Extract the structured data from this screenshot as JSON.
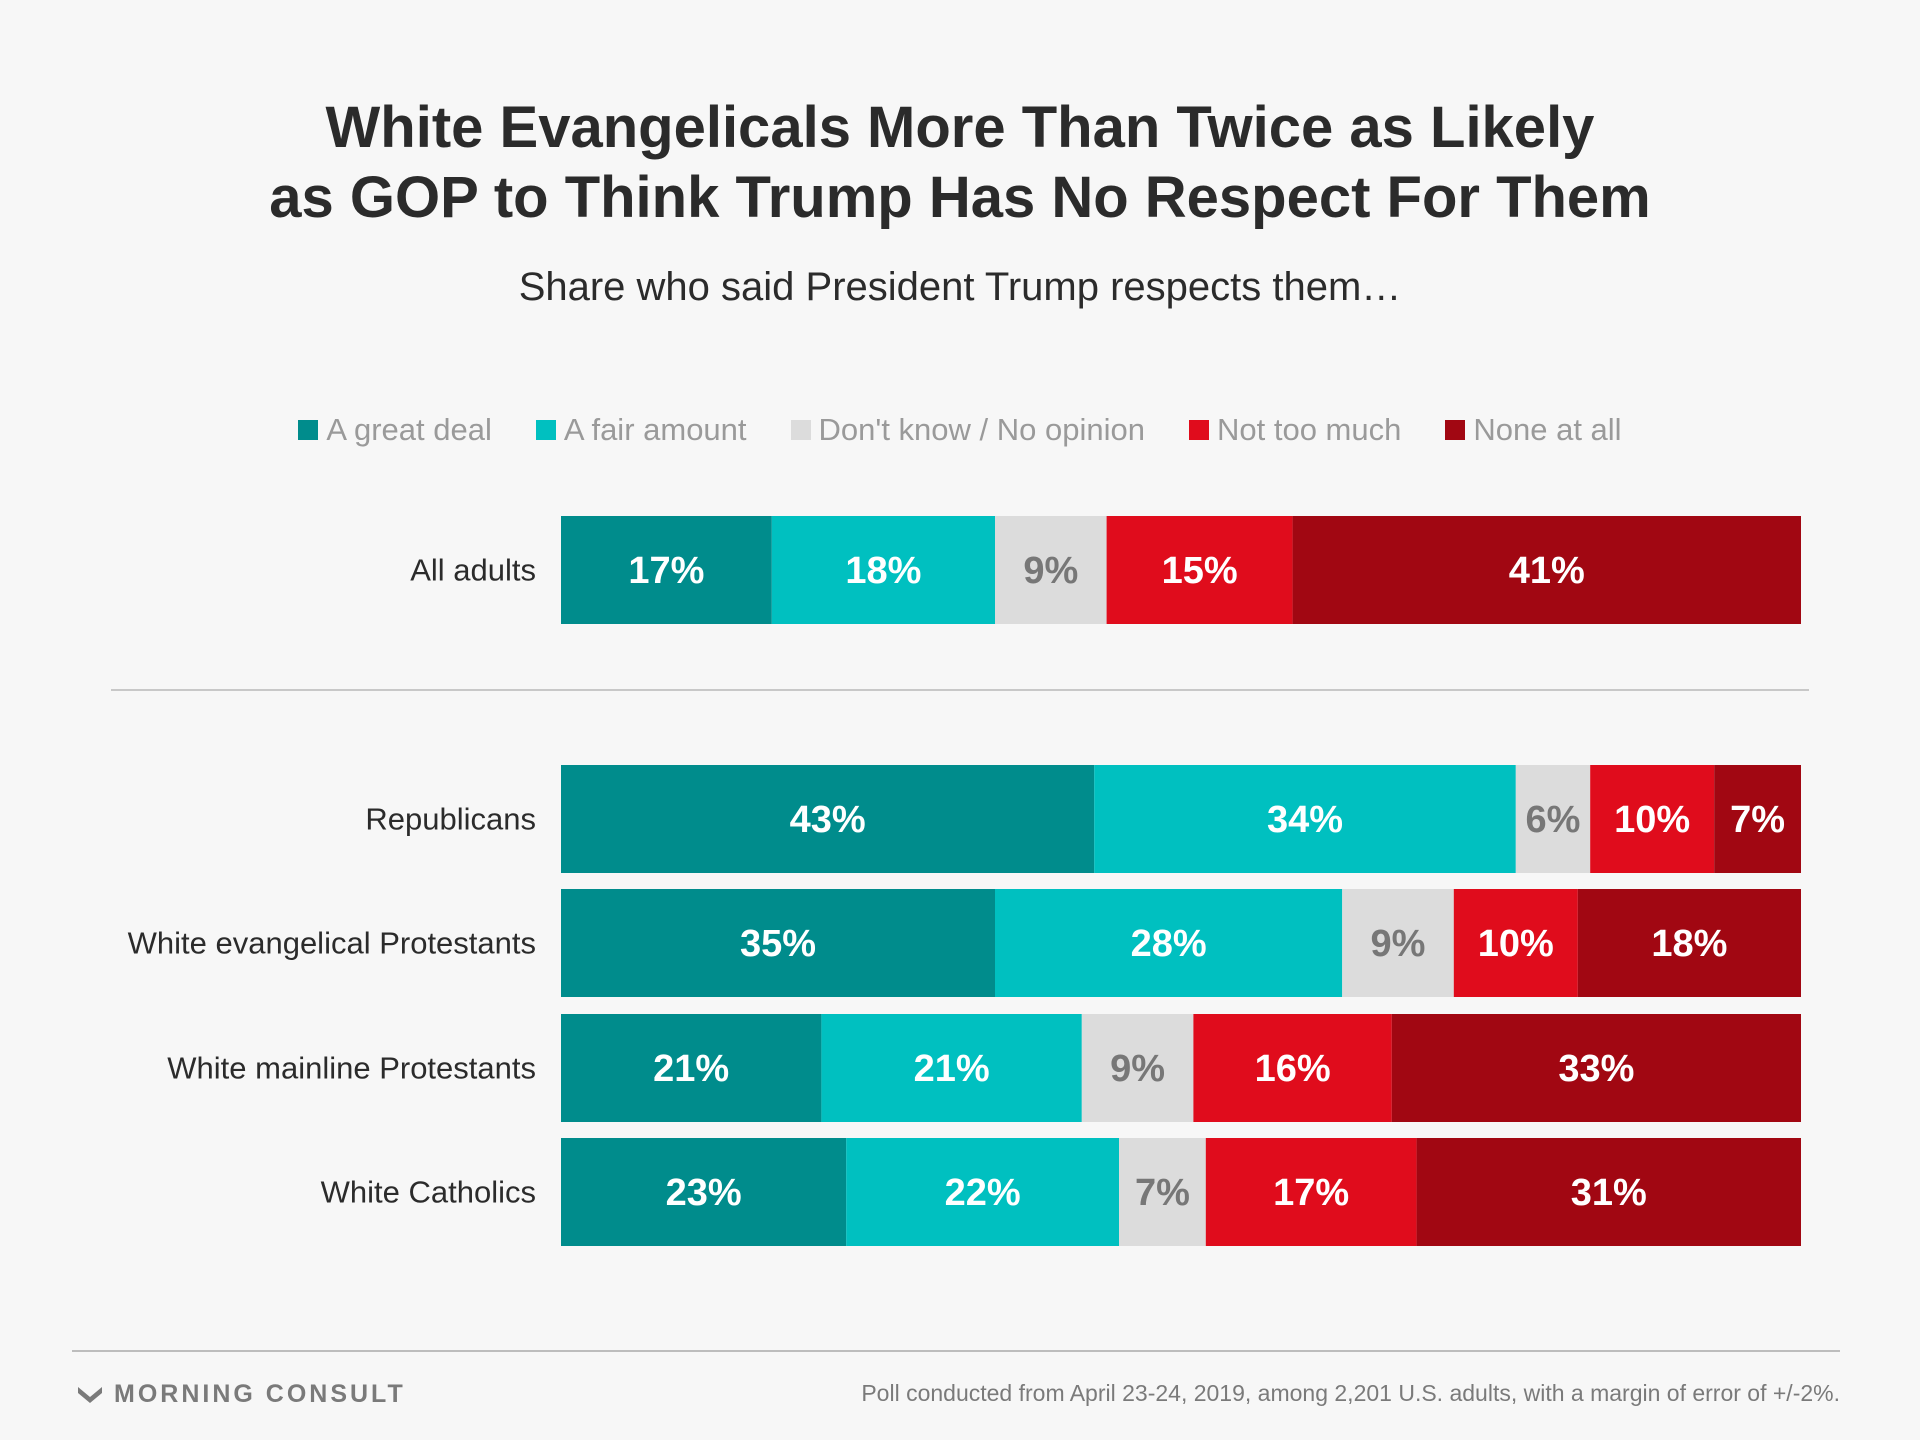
{
  "title_line1": "White Evangelicals More Than Twice as Likely",
  "title_line2": "as GOP to Think Trump Has No Respect For Them",
  "subtitle": "Share who said President Trump respects them…",
  "legend": [
    {
      "label": "A great deal",
      "color": "#008c8c"
    },
    {
      "label": "A fair amount",
      "color": "#00c0c0"
    },
    {
      "label": "Don't know / No opinion",
      "color": "#dcdcdc"
    },
    {
      "label": "Not too much",
      "color": "#e00c1c"
    },
    {
      "label": "None at all",
      "color": "#a10712"
    }
  ],
  "chart_data": {
    "type": "bar",
    "orientation": "horizontal",
    "stacked": true,
    "categories": [
      "All adults",
      "Republicans",
      "White evangelical Protestants",
      "White mainline Protestants",
      "White Catholics"
    ],
    "series": [
      {
        "name": "A great deal",
        "values": [
          17,
          43,
          35,
          21,
          23
        ],
        "color": "#008c8c",
        "label_color": "#ffffff"
      },
      {
        "name": "A fair amount",
        "values": [
          18,
          34,
          28,
          21,
          22
        ],
        "color": "#00c0c0",
        "label_color": "#ffffff"
      },
      {
        "name": "Don't know / No opinion",
        "values": [
          9,
          6,
          9,
          9,
          7
        ],
        "color": "#dcdcdc",
        "label_color": "#777777"
      },
      {
        "name": "Not too much",
        "values": [
          15,
          10,
          10,
          16,
          17
        ],
        "color": "#e00c1c",
        "label_color": "#ffffff"
      },
      {
        "name": "None at all",
        "values": [
          41,
          7,
          18,
          33,
          31
        ],
        "color": "#a10712",
        "label_color": "#ffffff"
      }
    ],
    "value_suffix": "%",
    "legend_position": "top",
    "grid": false,
    "divider_after_first_row": true
  },
  "footer": {
    "brand": "MORNING CONSULT",
    "note": "Poll conducted from April 23-24, 2019, among 2,201 U.S. adults, with a margin of error of +/-2%."
  }
}
